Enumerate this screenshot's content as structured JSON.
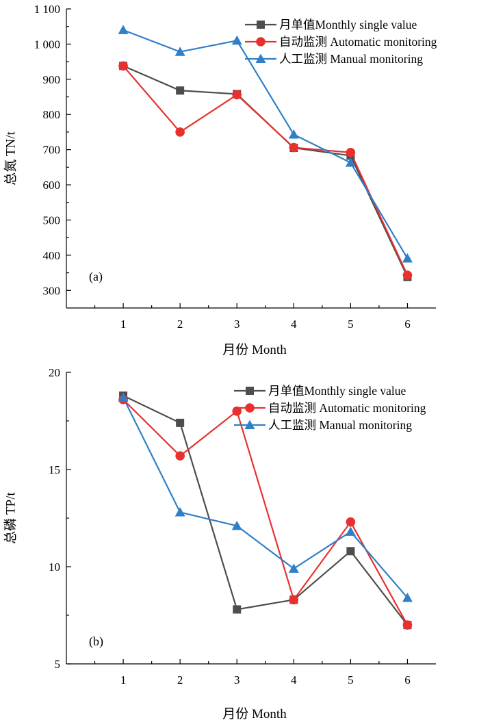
{
  "chart_data": [
    {
      "type": "line",
      "panel_label": "(a)",
      "xlabel": "月份 Month",
      "ylabel": "总氮 TN/t",
      "x": [
        1,
        2,
        3,
        4,
        5,
        6
      ],
      "x_tick_labels": [
        "1",
        "2",
        "3",
        "4",
        "5",
        "6"
      ],
      "xlim": [
        0.0,
        6.5
      ],
      "ylim": [
        250,
        1100
      ],
      "y_ticks": [
        300,
        400,
        500,
        600,
        700,
        800,
        900,
        1000,
        1100
      ],
      "y_tick_labels": [
        "300",
        "400",
        "500",
        "600",
        "700",
        "800",
        "900",
        "1 000",
        "1 100"
      ],
      "legend_position": "top-right",
      "series": [
        {
          "name": "月单值Monthly single value",
          "color": "#4d4d4d",
          "marker": "square",
          "values": [
            938,
            868,
            858,
            705,
            683,
            338
          ]
        },
        {
          "name": "自动监测 Automatic monitoring",
          "color": "#e8312f",
          "marker": "circle",
          "values": [
            938,
            750,
            856,
            706,
            692,
            343
          ]
        },
        {
          "name": "人工监测 Manual monitoring",
          "color": "#2f7fc8",
          "marker": "triangle",
          "values": [
            1040,
            978,
            1010,
            743,
            663,
            391
          ]
        }
      ]
    },
    {
      "type": "line",
      "panel_label": "(b)",
      "xlabel": "月份 Month",
      "ylabel": "总磷 TP/t",
      "x": [
        1,
        2,
        3,
        4,
        5,
        6
      ],
      "x_tick_labels": [
        "1",
        "2",
        "3",
        "4",
        "5",
        "6"
      ],
      "xlim": [
        0.0,
        6.5
      ],
      "ylim": [
        5,
        20
      ],
      "y_ticks": [
        5,
        10,
        15,
        20
      ],
      "y_tick_labels": [
        "5",
        "10",
        "15",
        "20"
      ],
      "legend_position": "top-right",
      "series": [
        {
          "name": "月单值Monthly single value",
          "color": "#4d4d4d",
          "marker": "square",
          "values": [
            18.8,
            17.4,
            7.8,
            8.3,
            10.8,
            7.0
          ]
        },
        {
          "name": "自动监测 Automatic monitoring",
          "color": "#e8312f",
          "marker": "circle",
          "values": [
            18.6,
            15.7,
            18.0,
            8.3,
            12.3,
            7.0
          ]
        },
        {
          "name": "人工监测 Manual monitoring",
          "color": "#2f7fc8",
          "marker": "triangle",
          "values": [
            18.7,
            12.8,
            12.1,
            9.9,
            11.8,
            8.4
          ]
        }
      ]
    }
  ]
}
